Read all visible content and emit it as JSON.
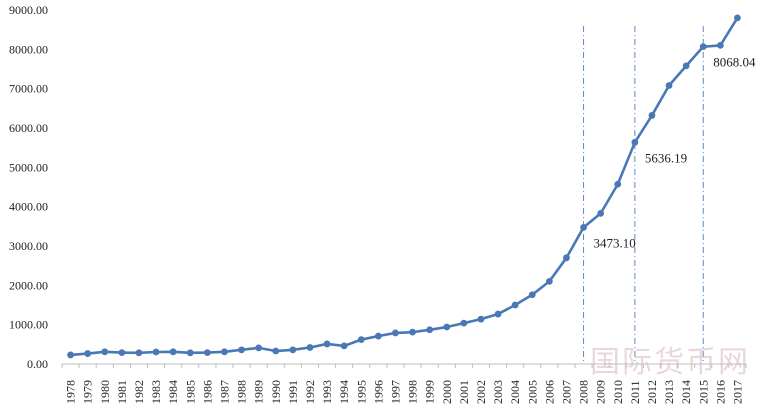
{
  "chart_data": {
    "type": "line",
    "title": "",
    "xlabel": "",
    "ylabel": "",
    "ylim": [
      0,
      9000
    ],
    "yticks": [
      "0.00",
      "1000.00",
      "2000.00",
      "3000.00",
      "4000.00",
      "5000.00",
      "6000.00",
      "7000.00",
      "8000.00",
      "9000.00"
    ],
    "ytick_values": [
      0,
      1000,
      2000,
      3000,
      4000,
      5000,
      6000,
      7000,
      8000,
      9000
    ],
    "grid": false,
    "legend": "none",
    "line_color": "#4a78b5",
    "categories": [
      "1978",
      "1979",
      "1980",
      "1981",
      "1982",
      "1983",
      "1984",
      "1985",
      "1986",
      "1987",
      "1988",
      "1989",
      "1990",
      "1991",
      "1992",
      "1993",
      "1994",
      "1995",
      "1996",
      "1997",
      "1998",
      "1999",
      "2000",
      "2001",
      "2002",
      "2003",
      "2004",
      "2005",
      "2006",
      "2007",
      "2008",
      "2009",
      "2010",
      "2011",
      "2012",
      "2013",
      "2014",
      "2015",
      "2016",
      "2017"
    ],
    "series": [
      {
        "values": [
          230,
          265,
          310,
          290,
          285,
          305,
          310,
          285,
          290,
          310,
          360,
          410,
          330,
          360,
          420,
          510,
          460,
          620,
          710,
          790,
          810,
          870,
          940,
          1040,
          1140,
          1270,
          1500,
          1760,
          2100,
          2700,
          3473.1,
          3830,
          4570,
          5636.19,
          6320,
          7080,
          7580,
          8068.04,
          8100,
          8800
        ]
      }
    ],
    "annotations": [
      {
        "category": "2008",
        "value": 3473.1,
        "label": "3473.10"
      },
      {
        "category": "2011",
        "value": 5636.19,
        "label": "5636.19"
      },
      {
        "category": "2015",
        "value": 8068.04,
        "label": "8068.04"
      }
    ],
    "reference_lines": [
      "2008",
      "2011",
      "2015"
    ]
  },
  "watermark": {
    "text": "国际货币网"
  }
}
